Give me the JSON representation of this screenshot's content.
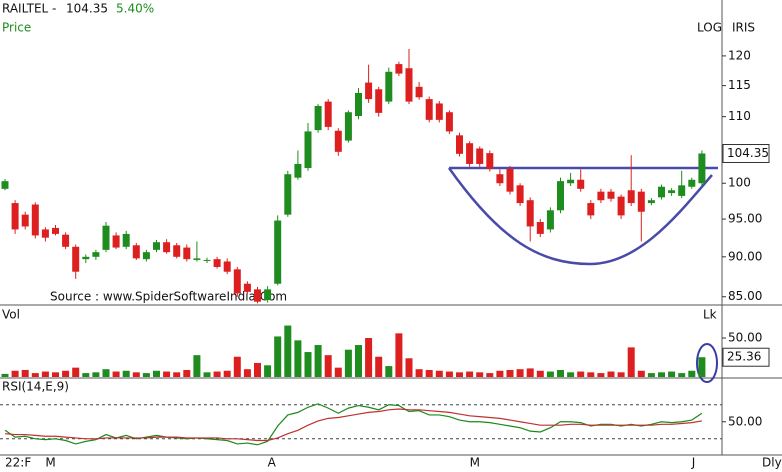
{
  "brand": "IRIS",
  "chart_data": [
    {
      "type": "candlestick",
      "title": "RAILTEL -",
      "change": "5.40%",
      "subtitle": "Price",
      "scale_label": "LOG",
      "log_scale": true,
      "source": "Source : www.SpiderSoftwareIndia.Com",
      "up_color": "#1e8c1e",
      "down_color": "#dd1f1f",
      "ylim": [
        84,
        130
      ],
      "yticks": [
        {
          "value": 85,
          "label": "85.00"
        },
        {
          "value": 90,
          "label": "90.00"
        },
        {
          "value": 95,
          "label": "95.00"
        },
        100,
        110,
        115,
        120
      ],
      "open": [
        99.2,
        97.2,
        95.6,
        97.0,
        93.6,
        93.8,
        92.9,
        91.3,
        89.7,
        90.0,
        90.9,
        92.8,
        91.3,
        91.5,
        89.7,
        90.9,
        91.9,
        91.5,
        91.2,
        89.6,
        89.5,
        89.7,
        89.4,
        88.4,
        86.6,
        85.9,
        84.6,
        86.6,
        95.6,
        100.8,
        102.2,
        107.9,
        112.4,
        107.8,
        106.3,
        110.1,
        115.5,
        114.4,
        112.4,
        118.6,
        117.9,
        114.8,
        112.8,
        112.1,
        110.7,
        107.1,
        105.9,
        105.1,
        104.4,
        101.3,
        102.1,
        99.7,
        97.6,
        94.6,
        93.6,
        96.2,
        100.0,
        100.5,
        97.2,
        98.8,
        98.8,
        98.1,
        99.0,
        98.8,
        97.2,
        98.0,
        98.6,
        98.2,
        99.5,
        100.0
      ],
      "high": [
        100.6,
        97.6,
        96.0,
        97.3,
        93.9,
        94.2,
        93.2,
        91.6,
        90.3,
        90.9,
        94.6,
        93.2,
        93.4,
        91.8,
        90.9,
        92.2,
        92.3,
        91.8,
        91.6,
        92.0,
        89.9,
        90.0,
        89.8,
        88.7,
        86.9,
        86.2,
        86.3,
        95.5,
        101.8,
        104.8,
        109.0,
        112.0,
        112.8,
        108.2,
        111.0,
        114.6,
        118.5,
        114.8,
        118.0,
        119.0,
        121.2,
        115.6,
        113.2,
        112.5,
        111.0,
        107.5,
        106.2,
        105.4,
        104.8,
        102.0,
        102.5,
        100.0,
        98.0,
        95.0,
        96.6,
        100.8,
        101.5,
        102.0,
        97.6,
        99.2,
        99.2,
        98.4,
        104.1,
        99.2,
        97.9,
        99.8,
        99.3,
        101.8,
        100.8,
        104.8
      ],
      "low": [
        99.0,
        93.0,
        93.6,
        92.4,
        92.0,
        92.8,
        91.0,
        87.2,
        89.2,
        89.6,
        90.6,
        91.0,
        91.0,
        89.6,
        89.4,
        90.6,
        90.4,
        89.8,
        89.4,
        89.4,
        89.2,
        88.5,
        87.8,
        85.0,
        85.3,
        84.2,
        84.3,
        86.4,
        95.3,
        100.5,
        101.8,
        107.5,
        107.9,
        104.0,
        106.0,
        109.6,
        112.2,
        110.0,
        112.0,
        116.6,
        112.0,
        112.7,
        109.1,
        109.1,
        107.3,
        103.9,
        102.4,
        102.4,
        101.7,
        99.6,
        98.4,
        96.8,
        92.0,
        92.6,
        93.2,
        95.8,
        99.6,
        98.8,
        95.0,
        97.2,
        97.4,
        95.0,
        96.8,
        92.0,
        96.9,
        97.7,
        98.2,
        97.9,
        99.2,
        99.6
      ],
      "close": [
        100.3,
        93.6,
        94.0,
        92.8,
        92.5,
        93.0,
        91.3,
        88.1,
        90.0,
        90.6,
        94.1,
        91.2,
        93.0,
        89.8,
        90.6,
        91.9,
        90.6,
        90.0,
        89.7,
        89.8,
        89.6,
        88.7,
        88.1,
        85.4,
        85.6,
        84.4,
        85.9,
        94.8,
        101.3,
        102.8,
        107.7,
        111.7,
        108.4,
        104.6,
        110.7,
        113.8,
        112.8,
        110.6,
        117.3,
        117.0,
        112.4,
        113.1,
        109.5,
        109.5,
        107.7,
        104.3,
        102.8,
        102.8,
        102.1,
        100.0,
        98.8,
        97.2,
        94.0,
        93.0,
        96.2,
        100.3,
        100.5,
        99.2,
        95.5,
        97.6,
        97.8,
        95.5,
        97.2,
        96.0,
        97.6,
        99.5,
        99.0,
        99.7,
        100.5,
        104.35
      ]
    },
    {
      "type": "bar",
      "title": "Vol",
      "unit": "Lk",
      "ylim": [
        0,
        88.5
      ],
      "yticks": [
        {
          "value": 50,
          "label": "50.00"
        }
      ],
      "values": [
        4,
        8,
        9,
        5,
        7,
        6,
        8,
        12,
        5,
        6,
        10,
        7,
        8,
        6,
        5,
        8,
        7,
        6,
        9,
        28,
        6,
        7,
        8,
        26,
        10,
        18,
        15,
        52,
        66,
        47,
        32,
        41,
        28,
        12,
        35,
        41,
        50,
        26,
        14,
        56,
        24,
        10,
        9,
        8,
        7,
        6,
        7,
        6,
        5,
        8,
        9,
        10,
        11,
        8,
        7,
        9,
        6,
        7,
        6,
        5,
        7,
        6,
        38,
        8,
        5,
        6,
        7,
        5,
        8,
        25.36
      ]
    },
    {
      "type": "line",
      "title": "RSI(14,E,9)",
      "period_label": "Dly",
      "ylim": [
        11,
        99
      ],
      "yticks": [
        {
          "value": 50,
          "label": "50.00"
        }
      ],
      "levels": [
        70,
        30
      ],
      "categories": [
        "22:F",
        null,
        null,
        null,
        "M",
        null,
        null,
        null,
        null,
        null,
        null,
        null,
        null,
        null,
        null,
        null,
        null,
        null,
        null,
        null,
        null,
        null,
        null,
        null,
        null,
        null,
        "A",
        null,
        null,
        null,
        null,
        null,
        null,
        null,
        null,
        null,
        null,
        null,
        null,
        null,
        null,
        null,
        null,
        null,
        null,
        null,
        "M",
        null,
        null,
        null,
        null,
        null,
        null,
        null,
        null,
        null,
        null,
        null,
        null,
        null,
        null,
        null,
        null,
        null,
        null,
        null,
        null,
        null,
        "J",
        null
      ],
      "series": [
        {
          "color": "#1a8a1a",
          "values": [
            40,
            32,
            33,
            30,
            29,
            30,
            28,
            24,
            27,
            29,
            35,
            31,
            34,
            30,
            32,
            34,
            32,
            31,
            30,
            31,
            30,
            29,
            28,
            24,
            25,
            23,
            27,
            45,
            58,
            61,
            67,
            71,
            66,
            60,
            66,
            69,
            67,
            64,
            70,
            69,
            62,
            63,
            58,
            58,
            56,
            52,
            50,
            50,
            49,
            47,
            45,
            43,
            39,
            38,
            43,
            50,
            50,
            49,
            45,
            47,
            47,
            45,
            47,
            45,
            47,
            50,
            49,
            50,
            52,
            60
          ]
        },
        {
          "color": "#c03030",
          "values": [
            36,
            35,
            35,
            34,
            33,
            33,
            32,
            31,
            30,
            30,
            31,
            31,
            31,
            31,
            31,
            32,
            32,
            32,
            31,
            31,
            31,
            31,
            30,
            30,
            29,
            28,
            28,
            31,
            36,
            40,
            46,
            51,
            54,
            55,
            57,
            59,
            61,
            62,
            64,
            65,
            64,
            64,
            63,
            62,
            61,
            59,
            57,
            56,
            55,
            54,
            52,
            50,
            48,
            46,
            46,
            46,
            47,
            47,
            46,
            46,
            46,
            46,
            46,
            46,
            46,
            47,
            47,
            48,
            49,
            51
          ]
        }
      ]
    }
  ]
}
